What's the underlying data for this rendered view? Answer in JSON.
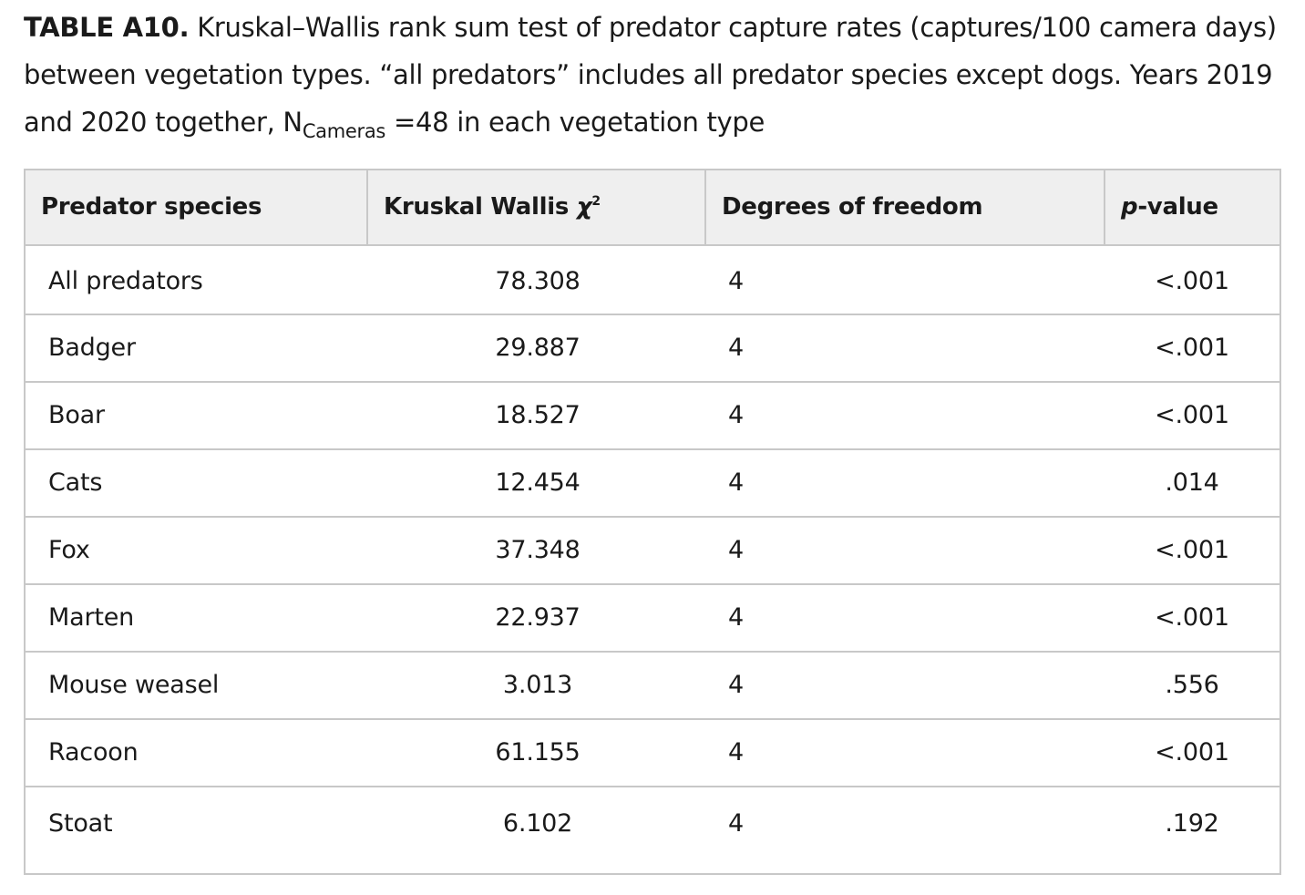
{
  "caption": {
    "label": "TABLE A10.",
    "text": " Kruskal–Wallis rank sum test of predator capture rates (captures/100 camera days) between vegetation types. “all predators” includes all predator species except dogs. Years 2019 and 2020 together, N",
    "subscript": "Cameras",
    "tail": " =48 in each vegetation type"
  },
  "table": {
    "headers": {
      "species": "Predator species",
      "chi_prefix": "Kruskal Wallis ",
      "chi_symbol": "χ",
      "chi_sup": "2",
      "df": "Degrees of freedom",
      "p_italic": "p",
      "p_rest": "-value"
    },
    "rows": [
      {
        "species": "All predators",
        "chi": "78.308",
        "df": "4",
        "p": "<.001"
      },
      {
        "species": "Badger",
        "chi": "29.887",
        "df": "4",
        "p": "<.001"
      },
      {
        "species": "Boar",
        "chi": "18.527",
        "df": "4",
        "p": "<.001"
      },
      {
        "species": "Cats",
        "chi": "12.454",
        "df": "4",
        "p": ".014"
      },
      {
        "species": "Fox",
        "chi": "37.348",
        "df": "4",
        "p": "<.001"
      },
      {
        "species": "Marten",
        "chi": "22.937",
        "df": "4",
        "p": "<.001"
      },
      {
        "species": "Mouse weasel",
        "chi": "3.013",
        "df": "4",
        "p": ".556"
      },
      {
        "species": "Racoon",
        "chi": "61.155",
        "df": "4",
        "p": "<.001"
      },
      {
        "species": "Stoat",
        "chi": "6.102",
        "df": "4",
        "p": ".192"
      }
    ]
  }
}
